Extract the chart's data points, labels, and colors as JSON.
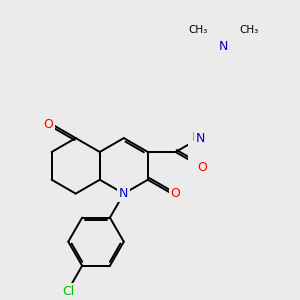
{
  "background_color": "#ebebeb",
  "atom_colors": {
    "C": "#000000",
    "N": "#0000cc",
    "O": "#ff0000",
    "H": "#7a9a9a",
    "Cl": "#00bb00"
  },
  "bond_color": "#000000",
  "bond_width": 1.4,
  "figsize": [
    3.0,
    3.0
  ],
  "dpi": 100,
  "xlim": [
    -2.2,
    2.8
  ],
  "ylim": [
    -3.2,
    3.2
  ]
}
